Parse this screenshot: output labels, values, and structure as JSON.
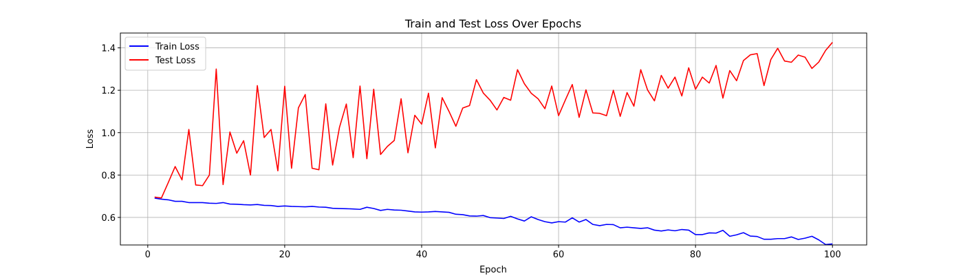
{
  "chart_data": {
    "type": "line",
    "title": "Train and Test Loss Over Epochs",
    "xlabel": "Epoch",
    "ylabel": "Loss",
    "xlim": [
      -4,
      105
    ],
    "ylim": [
      0.47,
      1.47
    ],
    "xticks": [
      0,
      20,
      40,
      60,
      80,
      100
    ],
    "yticks": [
      0.6,
      0.8,
      1.0,
      1.2,
      1.4
    ],
    "xtick_labels": [
      "0",
      "20",
      "40",
      "60",
      "80",
      "100"
    ],
    "ytick_labels": [
      "0.6",
      "0.8",
      "1.0",
      "1.2",
      "1.4"
    ],
    "grid": true,
    "legend_position": "top-left",
    "x": [
      1,
      2,
      3,
      4,
      5,
      6,
      7,
      8,
      9,
      10,
      11,
      12,
      13,
      14,
      15,
      16,
      17,
      18,
      19,
      20,
      21,
      22,
      23,
      24,
      25,
      26,
      27,
      28,
      29,
      30,
      31,
      32,
      33,
      34,
      35,
      36,
      37,
      38,
      39,
      40,
      41,
      42,
      43,
      44,
      45,
      46,
      47,
      48,
      49,
      50,
      51,
      52,
      53,
      54,
      55,
      56,
      57,
      58,
      59,
      60,
      61,
      62,
      63,
      64,
      65,
      66,
      67,
      68,
      69,
      70,
      71,
      72,
      73,
      74,
      75,
      76,
      77,
      78,
      79,
      80,
      81,
      82,
      83,
      84,
      85,
      86,
      87,
      88,
      89,
      90,
      91,
      92,
      93,
      94,
      95,
      96,
      97,
      98,
      99,
      100
    ],
    "series": [
      {
        "name": "Train Loss",
        "color": "#0000ff",
        "values": [
          0.691,
          0.686,
          0.683,
          0.676,
          0.676,
          0.67,
          0.67,
          0.67,
          0.667,
          0.666,
          0.67,
          0.663,
          0.662,
          0.66,
          0.659,
          0.661,
          0.657,
          0.656,
          0.652,
          0.654,
          0.652,
          0.651,
          0.65,
          0.652,
          0.649,
          0.648,
          0.643,
          0.642,
          0.641,
          0.64,
          0.638,
          0.648,
          0.642,
          0.633,
          0.638,
          0.635,
          0.634,
          0.63,
          0.626,
          0.625,
          0.626,
          0.628,
          0.626,
          0.624,
          0.615,
          0.613,
          0.607,
          0.606,
          0.609,
          0.599,
          0.597,
          0.595,
          0.605,
          0.593,
          0.583,
          0.603,
          0.59,
          0.58,
          0.574,
          0.58,
          0.578,
          0.598,
          0.578,
          0.59,
          0.567,
          0.561,
          0.567,
          0.566,
          0.551,
          0.554,
          0.551,
          0.548,
          0.551,
          0.54,
          0.536,
          0.541,
          0.537,
          0.543,
          0.54,
          0.519,
          0.519,
          0.527,
          0.526,
          0.539,
          0.511,
          0.518,
          0.528,
          0.512,
          0.51,
          0.497,
          0.497,
          0.5,
          0.5,
          0.508,
          0.496,
          0.502,
          0.511,
          0.494,
          0.472,
          0.475
        ]
      },
      {
        "name": "Test Loss",
        "color": "#ff0000",
        "values": [
          0.696,
          0.692,
          0.765,
          0.84,
          0.777,
          1.015,
          0.753,
          0.75,
          0.8,
          1.3,
          0.755,
          1.003,
          0.903,
          0.962,
          0.8,
          1.222,
          0.977,
          1.015,
          0.82,
          1.219,
          0.832,
          1.117,
          1.18,
          0.832,
          0.825,
          1.136,
          0.847,
          1.025,
          1.135,
          0.882,
          1.22,
          0.877,
          1.205,
          0.897,
          0.935,
          0.963,
          1.16,
          0.905,
          1.082,
          1.04,
          1.186,
          0.928,
          1.165,
          1.1,
          1.03,
          1.116,
          1.128,
          1.25,
          1.187,
          1.153,
          1.107,
          1.166,
          1.153,
          1.297,
          1.231,
          1.186,
          1.16,
          1.113,
          1.22,
          1.08,
          1.155,
          1.227,
          1.072,
          1.202,
          1.093,
          1.091,
          1.08,
          1.2,
          1.077,
          1.189,
          1.125,
          1.297,
          1.201,
          1.15,
          1.27,
          1.21,
          1.262,
          1.173,
          1.306,
          1.205,
          1.262,
          1.234,
          1.317,
          1.163,
          1.293,
          1.245,
          1.34,
          1.367,
          1.373,
          1.222,
          1.345,
          1.398,
          1.338,
          1.332,
          1.366,
          1.356,
          1.303,
          1.333,
          1.388,
          1.426
        ]
      }
    ]
  }
}
